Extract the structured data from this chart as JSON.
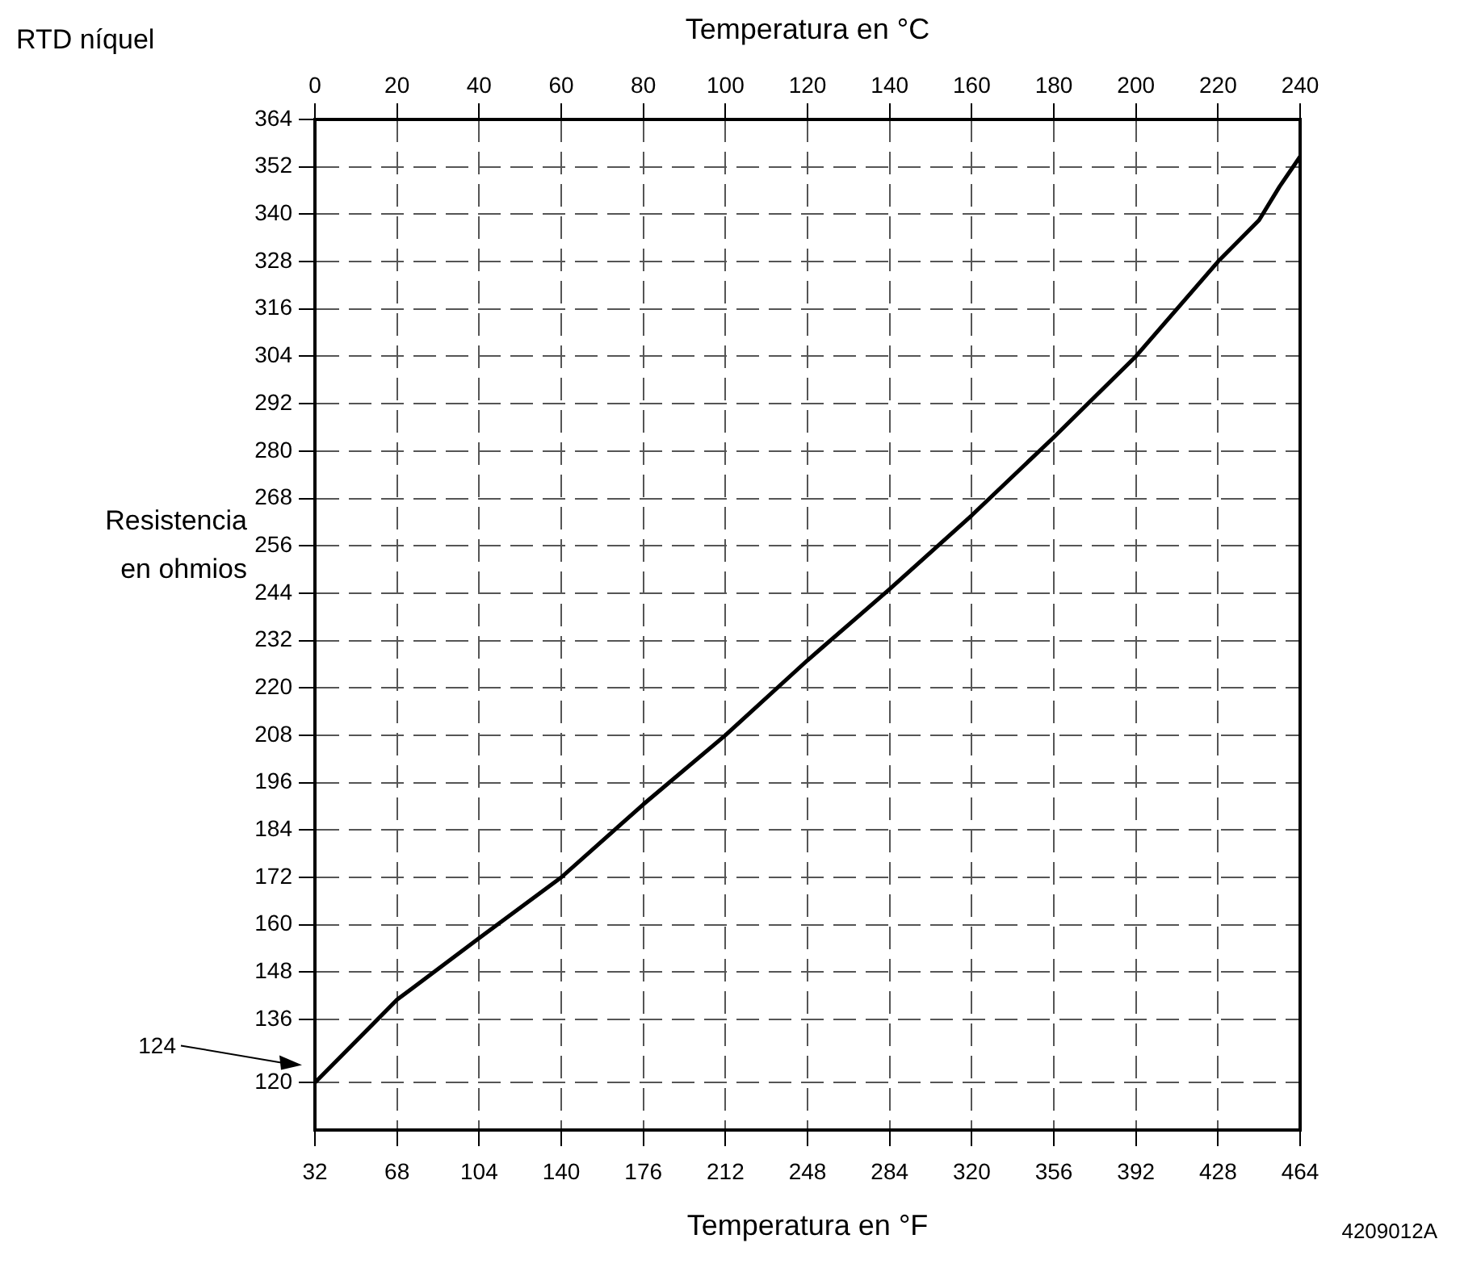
{
  "chart_data": {
    "type": "line",
    "title": "RTD níquel",
    "xlabel": "Temperatura en °F",
    "x2label": "Temperatura en °C",
    "ylabel": "Resistencia en ohmios",
    "x": [
      32,
      68,
      104,
      140,
      176,
      212,
      248,
      284,
      320,
      356,
      392,
      428,
      446,
      455,
      464
    ],
    "series": [
      {
        "color": "#000000",
        "values": [
          120,
          141,
          156.6,
          172,
          190.5,
          208,
          227,
          245,
          263.7,
          283.5,
          304,
          328,
          338.5,
          347,
          354.6
        ]
      }
    ],
    "xlim": [
      32,
      464
    ],
    "xticks": [
      32,
      68,
      104,
      140,
      176,
      212,
      248,
      284,
      320,
      356,
      392,
      428,
      464
    ],
    "x2lim": [
      0,
      240
    ],
    "x2ticks": [
      0,
      20,
      40,
      60,
      80,
      100,
      120,
      140,
      160,
      180,
      200,
      220,
      240
    ],
    "ylim": [
      108,
      364
    ],
    "yticks": [
      120,
      136,
      148,
      160,
      172,
      184,
      196,
      208,
      220,
      232,
      244,
      256,
      268,
      280,
      292,
      304,
      316,
      328,
      340,
      352,
      364
    ],
    "grid": true,
    "marker": "none",
    "line_style": "solid",
    "annotations": [
      "124",
      "4209012A"
    ]
  }
}
